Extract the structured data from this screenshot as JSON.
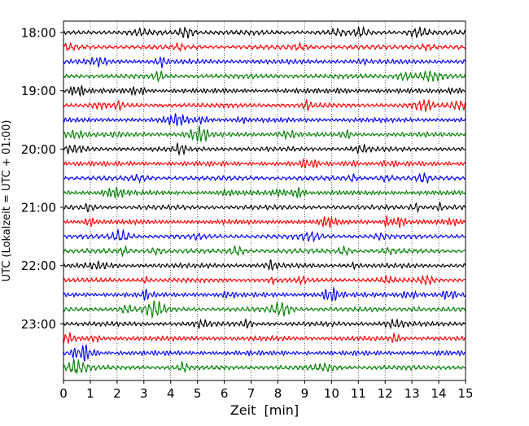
{
  "chart_data": {
    "type": "line",
    "title": "",
    "xlabel": "Zeit  [min]",
    "ylabel": "UTC (Lokalzeit = UTC + 01:00)",
    "xlim": [
      0,
      15
    ],
    "x_ticks": [
      "0",
      "1",
      "2",
      "3",
      "4",
      "5",
      "6",
      "7",
      "8",
      "9",
      "10",
      "11",
      "12",
      "13",
      "14",
      "15"
    ],
    "y_tick_labels": [
      "18:00",
      "19:00",
      "20:00",
      "21:00",
      "22:00",
      "23:00"
    ],
    "grid": "vertical dotted",
    "trace_colors": [
      "#000000",
      "#ff0000",
      "#0000ff",
      "#008000"
    ],
    "traces": [
      {
        "start": "18:00",
        "color": "#000000"
      },
      {
        "start": "18:15",
        "color": "#ff0000"
      },
      {
        "start": "18:30",
        "color": "#0000ff"
      },
      {
        "start": "18:45",
        "color": "#008000"
      },
      {
        "start": "19:00",
        "color": "#000000"
      },
      {
        "start": "19:15",
        "color": "#ff0000"
      },
      {
        "start": "19:30",
        "color": "#0000ff"
      },
      {
        "start": "19:45",
        "color": "#008000"
      },
      {
        "start": "20:00",
        "color": "#000000"
      },
      {
        "start": "20:15",
        "color": "#ff0000"
      },
      {
        "start": "20:30",
        "color": "#0000ff"
      },
      {
        "start": "20:45",
        "color": "#008000"
      },
      {
        "start": "21:00",
        "color": "#000000"
      },
      {
        "start": "21:15",
        "color": "#ff0000"
      },
      {
        "start": "21:30",
        "color": "#0000ff"
      },
      {
        "start": "21:45",
        "color": "#008000"
      },
      {
        "start": "22:00",
        "color": "#000000"
      },
      {
        "start": "22:15",
        "color": "#ff0000"
      },
      {
        "start": "22:30",
        "color": "#0000ff"
      },
      {
        "start": "22:45",
        "color": "#008000"
      },
      {
        "start": "23:00",
        "color": "#000000"
      },
      {
        "start": "23:15",
        "color": "#ff0000"
      },
      {
        "start": "23:30",
        "color": "#0000ff"
      },
      {
        "start": "23:45",
        "color": "#008000"
      }
    ]
  }
}
